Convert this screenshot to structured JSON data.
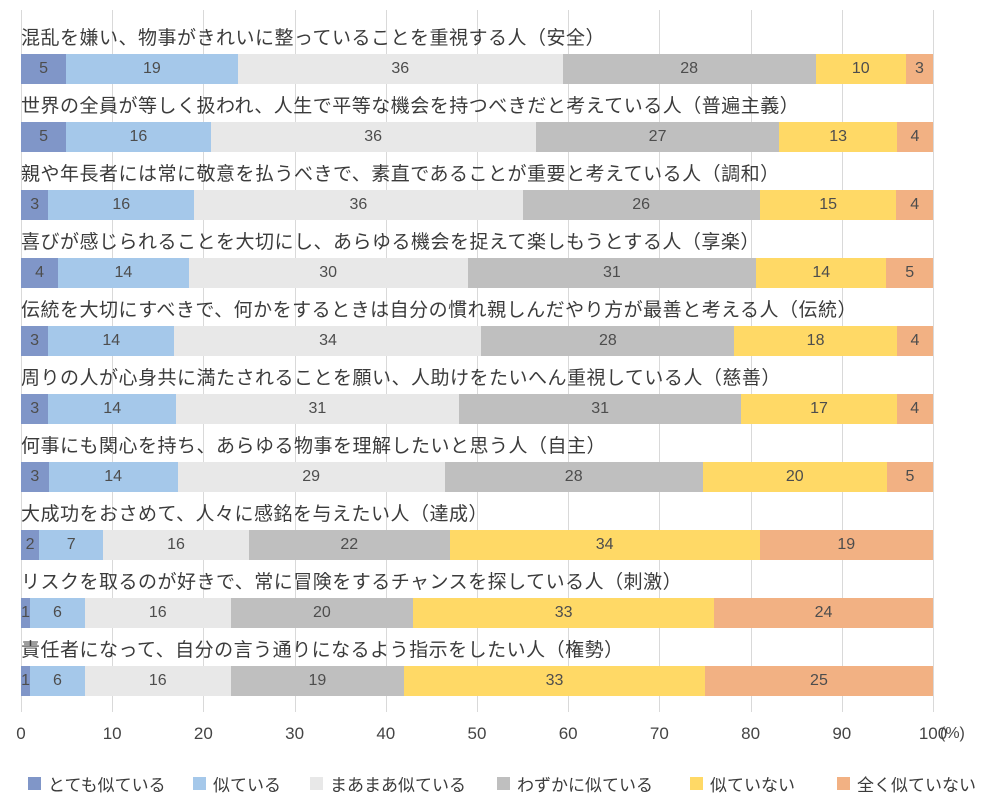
{
  "chart_data": {
    "type": "bar",
    "orientation": "horizontal",
    "stacked": true,
    "percent_stacked": true,
    "title": "",
    "xlabel": "",
    "ylabel": "",
    "unit": "(%)",
    "xlim": [
      0,
      100
    ],
    "x_ticks": [
      0,
      10,
      20,
      30,
      40,
      50,
      60,
      70,
      80,
      90,
      100
    ],
    "grid": true,
    "legend_position": "bottom",
    "categories": [
      "混乱を嫌い、物事がきれいに整っていることを重視する人（安全）",
      "世界の全員が等しく扱われ、人生で平等な機会を持つべきだと考えている人（普遍主義）",
      "親や年長者には常に敬意を払うべきで、素直であることが重要と考えている人（調和）",
      "喜びが感じられることを大切にし、あらゆる機会を捉えて楽しもうとする人（享楽）",
      "伝統を大切にすべきで、何かをするときは自分の慣れ親しんだやり方が最善と考える人（伝統）",
      "周りの人が心身共に満たされることを願い、人助けをたいへん重視している人（慈善）",
      "何事にも関心を持ち、あらゆる物事を理解したいと思う人（自主）",
      "大成功をおさめて、人々に感銘を与えたい人（達成）",
      "リスクを取るのが好きで、常に冒険をするチャンスを探している人（刺激）",
      "責任者になって、自分の言う通りになるよう指示をしたい人（権勢）"
    ],
    "series": [
      {
        "name": "とても似ている",
        "color": "#8096c8",
        "values": [
          5,
          5,
          3,
          4,
          3,
          3,
          3,
          2,
          1,
          1
        ]
      },
      {
        "name": "似ている",
        "color": "#a5c8ea",
        "values": [
          19,
          16,
          16,
          14,
          14,
          14,
          14,
          7,
          6,
          6
        ]
      },
      {
        "name": "まあまあ似ている",
        "color": "#e8e8e8",
        "values": [
          36,
          36,
          36,
          30,
          34,
          31,
          29,
          16,
          16,
          16
        ]
      },
      {
        "name": "わずかに似ている",
        "color": "#bfbfbf",
        "values": [
          28,
          27,
          26,
          31,
          28,
          31,
          28,
          22,
          20,
          19
        ]
      },
      {
        "name": "似ていない",
        "color": "#ffd966",
        "values": [
          10,
          13,
          15,
          14,
          18,
          17,
          20,
          34,
          33,
          33
        ]
      },
      {
        "name": "全く似ていない",
        "color": "#f2b183",
        "values": [
          3,
          4,
          4,
          5,
          4,
          4,
          5,
          19,
          24,
          25
        ]
      }
    ]
  }
}
